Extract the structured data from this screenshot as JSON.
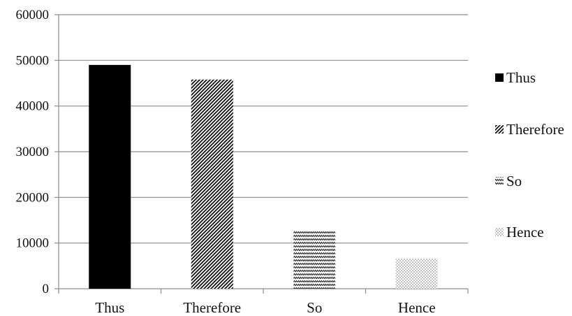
{
  "chart_data": {
    "type": "bar",
    "categories": [
      "Thus",
      "Therefore",
      "So",
      "Hence"
    ],
    "values": [
      49000,
      45800,
      12700,
      6600
    ],
    "ylim": [
      0,
      60000
    ],
    "yticks": [
      "0",
      "10000",
      "20000",
      "30000",
      "40000",
      "50000",
      "60000"
    ],
    "grid": true,
    "legend_position": "right",
    "legend": [
      "Thus",
      "Therefore",
      "So",
      "Hence"
    ],
    "fills": [
      "solid",
      "diagonal-stripes",
      "zigzag",
      "dots"
    ],
    "colors": {
      "bar": "#000000",
      "grid": "#8c8c8c"
    }
  }
}
